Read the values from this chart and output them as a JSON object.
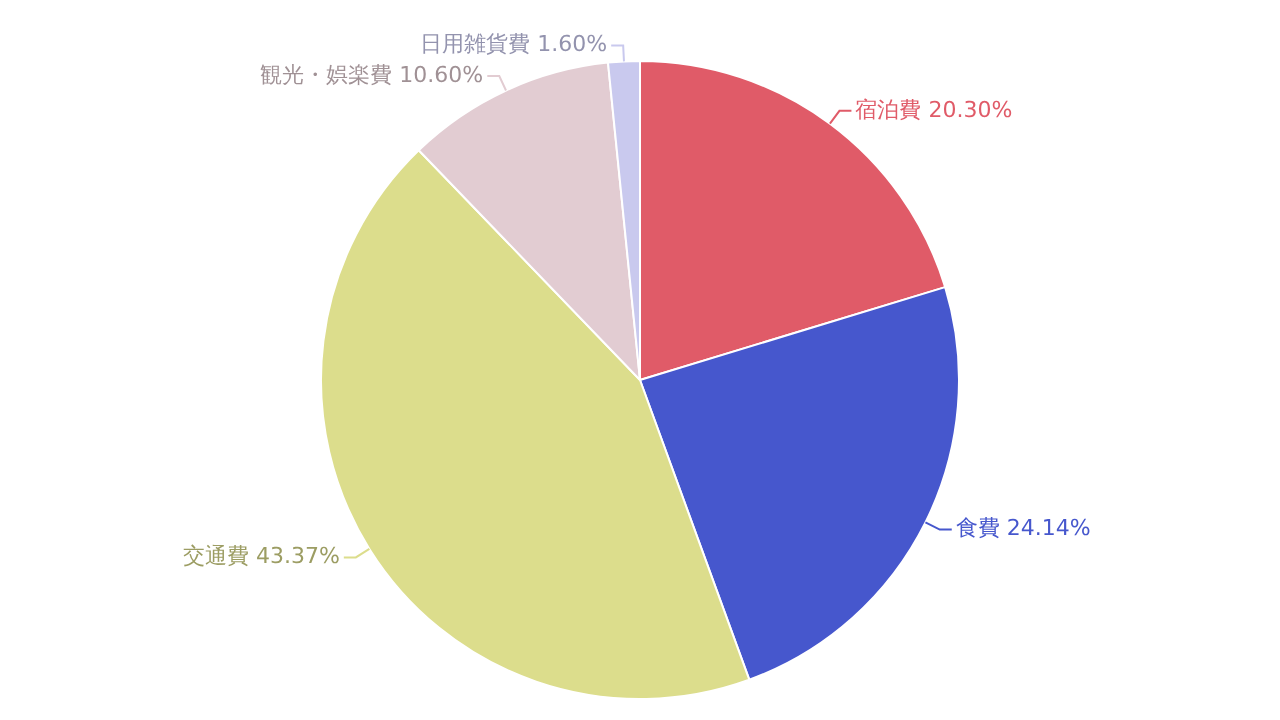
{
  "chart_data": {
    "type": "pie",
    "categories": [
      "宿泊費",
      "食費",
      "交通費",
      "観光・娯楽費",
      "日用雑貨費"
    ],
    "values": [
      20.3,
      24.14,
      43.37,
      10.6,
      1.6
    ],
    "value_labels": [
      "20.30%",
      "24.14%",
      "43.37%",
      "10.60%",
      "1.60%"
    ],
    "colors": [
      "#e05b68",
      "#4657cd",
      "#dcdd8c",
      "#e2ccd2",
      "#c9c9ee"
    ],
    "legend": false
  }
}
